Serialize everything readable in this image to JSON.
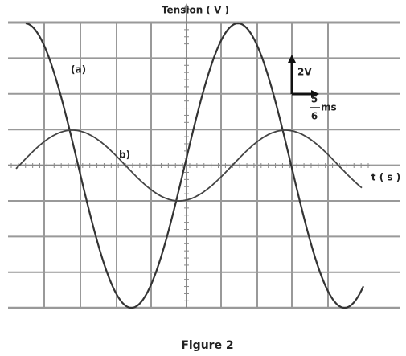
{
  "axes": {
    "y_label": "Tension ( V )",
    "x_label": "t ( s )"
  },
  "curves": [
    {
      "label": "(a)"
    },
    {
      "label": "b)"
    }
  ],
  "scale": {
    "vertical": "2V",
    "horizontal_numerator": "5",
    "horizontal_denominator": "6",
    "horizontal_unit": "ms"
  },
  "caption": "Figure 2"
}
